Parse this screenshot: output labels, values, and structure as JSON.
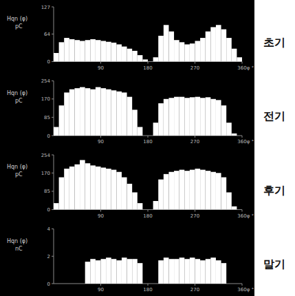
{
  "chart_data": [
    {
      "type": "histogram",
      "title": "초기",
      "ylabel": "Hqn (φ)",
      "y_unit": "pC",
      "xlabel": "φ °",
      "bins": [
        0,
        10,
        20,
        30,
        40,
        50,
        60,
        70,
        80,
        90,
        100,
        110,
        120,
        130,
        140,
        150,
        160,
        170,
        180,
        190,
        200,
        210,
        220,
        230,
        240,
        250,
        260,
        270,
        280,
        290,
        300,
        310,
        320,
        330,
        340,
        350,
        360
      ],
      "counts": [
        20,
        45,
        55,
        52,
        50,
        48,
        50,
        52,
        50,
        48,
        46,
        44,
        40,
        35,
        30,
        25,
        15,
        5,
        0,
        10,
        60,
        85,
        70,
        50,
        45,
        40,
        42,
        48,
        55,
        70,
        80,
        85,
        75,
        55,
        30,
        10
      ],
      "color": "#ffffff",
      "xlim": [
        0,
        360
      ],
      "xticks": [
        90,
        180,
        270,
        360
      ],
      "ylim": [
        0,
        127
      ],
      "yticks": [
        0,
        64,
        127
      ]
    },
    {
      "type": "histogram",
      "title": "전기",
      "ylabel": "Hqn (φ)",
      "y_unit": "pC",
      "xlabel": "φ °",
      "bins": [
        0,
        10,
        20,
        30,
        40,
        50,
        60,
        70,
        80,
        90,
        100,
        110,
        120,
        130,
        140,
        150,
        160,
        170,
        180,
        190,
        200,
        210,
        220,
        230,
        240,
        250,
        260,
        270,
        280,
        290,
        300,
        310,
        320,
        330,
        340,
        350,
        360
      ],
      "counts": [
        40,
        140,
        200,
        215,
        220,
        225,
        220,
        215,
        225,
        220,
        215,
        210,
        205,
        200,
        180,
        120,
        40,
        0,
        0,
        60,
        150,
        170,
        175,
        180,
        180,
        175,
        178,
        180,
        175,
        178,
        170,
        165,
        140,
        60,
        10,
        0
      ],
      "color": "#ffffff",
      "xlim": [
        0,
        360
      ],
      "xticks": [
        90,
        180,
        270,
        360
      ],
      "ylim": [
        0,
        254
      ],
      "yticks": [
        0,
        85,
        170,
        254
      ]
    },
    {
      "type": "histogram",
      "title": "후기",
      "ylabel": "Hqn (φ)",
      "y_unit": "pC",
      "xlabel": "φ °",
      "bins": [
        0,
        10,
        20,
        30,
        40,
        50,
        60,
        70,
        80,
        90,
        100,
        110,
        120,
        130,
        140,
        150,
        160,
        170,
        180,
        190,
        200,
        210,
        220,
        230,
        240,
        250,
        260,
        270,
        280,
        290,
        300,
        310,
        320,
        330,
        340,
        350,
        360
      ],
      "counts": [
        30,
        150,
        190,
        200,
        210,
        230,
        215,
        205,
        200,
        195,
        190,
        185,
        175,
        150,
        120,
        80,
        30,
        0,
        0,
        40,
        140,
        165,
        175,
        180,
        185,
        180,
        185,
        190,
        185,
        180,
        175,
        170,
        150,
        80,
        15,
        0
      ],
      "color": "#ffffff",
      "xlim": [
        0,
        360
      ],
      "xticks": [
        90,
        180,
        270,
        360
      ],
      "ylim": [
        0,
        254
      ],
      "yticks": [
        0,
        85,
        170,
        254
      ]
    },
    {
      "type": "histogram",
      "title": "말기",
      "ylabel": "Hqn (φ)",
      "y_unit": "nC",
      "xlabel": "φ °",
      "bins": [
        0,
        10,
        20,
        30,
        40,
        50,
        60,
        70,
        80,
        90,
        100,
        110,
        120,
        130,
        140,
        150,
        160,
        170,
        180,
        190,
        200,
        210,
        220,
        230,
        240,
        250,
        260,
        270,
        280,
        290,
        300,
        310,
        320,
        330,
        340,
        350,
        360
      ],
      "counts": [
        0,
        0,
        0,
        0,
        0,
        0,
        1.6,
        1.8,
        1.7,
        1.8,
        1.9,
        1.8,
        1.7,
        1.9,
        1.8,
        1.8,
        1.5,
        0,
        0,
        0,
        1.7,
        1.9,
        1.8,
        1.8,
        1.9,
        1.8,
        1.9,
        1.8,
        1.7,
        1.8,
        1.9,
        1.7,
        1.5,
        0,
        0,
        0
      ],
      "color": "#ffffff",
      "xlim": [
        0,
        360
      ],
      "xticks": [
        90,
        180,
        270,
        360
      ],
      "ylim": [
        0,
        4
      ],
      "yticks": [
        0,
        2,
        4
      ]
    }
  ]
}
